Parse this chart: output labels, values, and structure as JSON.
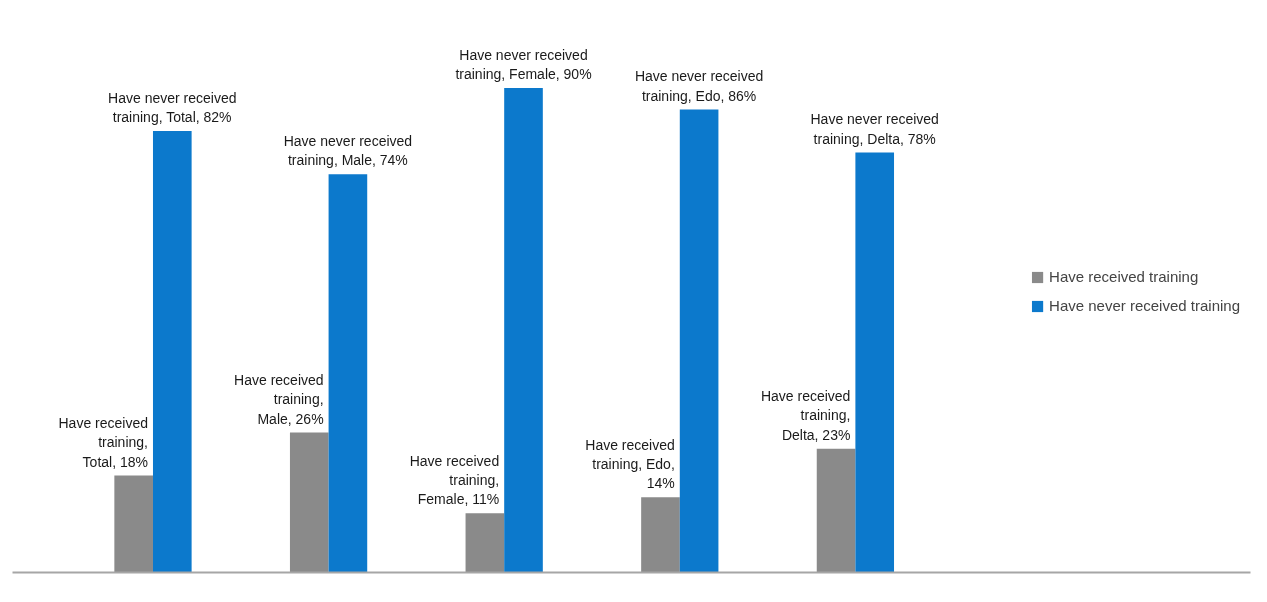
{
  "chart_data": {
    "type": "bar",
    "categories": [
      null,
      null,
      null,
      null,
      null
    ],
    "series": [
      {
        "name": "Have received training",
        "color": "#8a8a8a",
        "values": [
          18,
          26,
          11,
          14,
          23
        ],
        "value_labels": [
          "Have received training, Total, 18%",
          "Have received training, Male, 26%",
          "Have received training, Female, 11%",
          "Have received training, Edo, 14%",
          "Have received training, Delta, 23%"
        ]
      },
      {
        "name": "Have never received training",
        "color": "#0c79cc",
        "values": [
          82,
          74,
          90,
          86,
          78
        ],
        "value_labels": [
          "Have never received training, Total, 82%",
          "Have never received training, Male, 74%",
          "Have never received training, Female, 90%",
          "Have never received training, Edo, 86%",
          "Have never received training, Delta, 78%"
        ]
      }
    ],
    "legend": "right",
    "tick_labels": false
  }
}
